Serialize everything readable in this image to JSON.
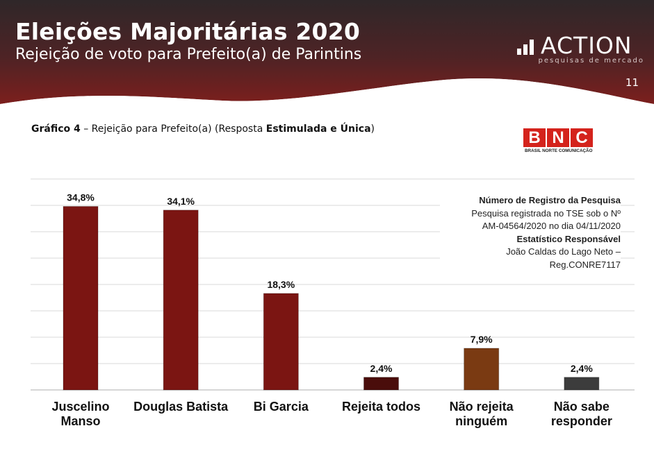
{
  "header": {
    "title": "Eleições Majoritárias 2020",
    "subtitle": "Rejeição de voto para Prefeito(a) de Parintins",
    "page_number": "11",
    "bg_color_top": "#2f2729",
    "bg_color_bottom": "#7c1f1d"
  },
  "logo": {
    "word": "ACTION",
    "tagline": "pesquisas de mercado",
    "icon": "bars-chart-icon"
  },
  "caption": {
    "prefix": "Gráfico 4",
    "dash": " – Rejeição para Prefeito(a) (Resposta ",
    "bold": "Estimulada e Única",
    "suffix": ")"
  },
  "bnc_logo": {
    "letters": [
      "B",
      "N",
      "C"
    ],
    "subtitle": "BRASIL NORTE COMUNICAÇÃO",
    "color": "#d4231c"
  },
  "registration": {
    "heading": "Número de Registro da Pesquisa",
    "line1": "Pesquisa registrada no TSE sob o Nº",
    "line2": "AM-04564/2020 no dia 04/11/2020",
    "heading2": "Estatístico Responsável",
    "line3": "João Caldas do Lago Neto –",
    "line4": "Reg.CONRE7117"
  },
  "chart_data": {
    "type": "bar",
    "categories": [
      [
        "Juscelino",
        "Manso"
      ],
      [
        "Douglas Batista"
      ],
      [
        "Bi Garcia"
      ],
      [
        "Rejeita todos"
      ],
      [
        "Não rejeita",
        "ninguém"
      ],
      [
        "Não sabe",
        "responder"
      ]
    ],
    "values": [
      34.8,
      34.1,
      18.3,
      2.4,
      7.9,
      2.4
    ],
    "labels": [
      "34,8%",
      "34,1%",
      "18,3%",
      "2,4%",
      "7,9%",
      "2,4%"
    ],
    "colors": [
      "#7b1512",
      "#7b1512",
      "#7b1512",
      "#4a0d0b",
      "#7a3a12",
      "#3c3c3c"
    ],
    "ylim": [
      0,
      40
    ],
    "grid": true
  }
}
